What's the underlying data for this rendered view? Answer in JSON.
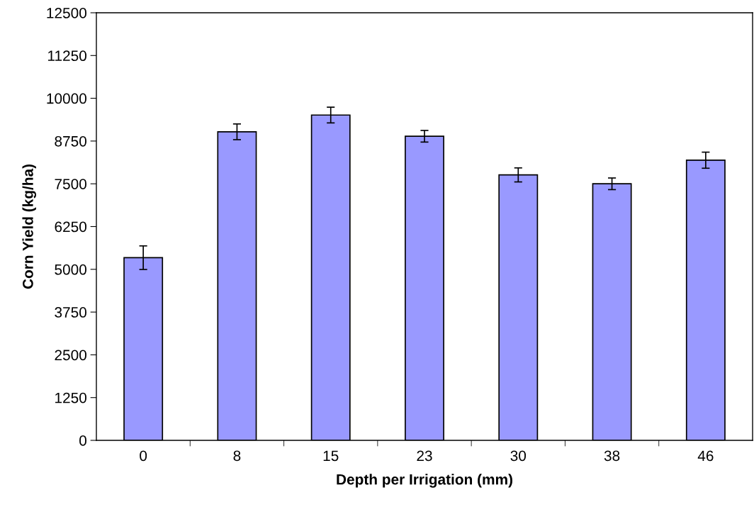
{
  "chart_data": {
    "type": "bar",
    "xlabel": "Depth per Irrigation (mm)",
    "ylabel": "Corn Yield (kg/ha)",
    "categories": [
      "0",
      "8",
      "15",
      "23",
      "30",
      "38",
      "46"
    ],
    "values": [
      5340,
      9020,
      9510,
      8890,
      7760,
      7500,
      8190
    ],
    "errors": [
      345,
      230,
      230,
      170,
      205,
      170,
      235
    ],
    "color": "#9999ff",
    "ylim": [
      0,
      12500
    ],
    "yticks": [
      0,
      1250,
      2500,
      3750,
      5000,
      6250,
      7500,
      8750,
      10000,
      11250,
      12500
    ],
    "grid": false,
    "legend": false
  }
}
